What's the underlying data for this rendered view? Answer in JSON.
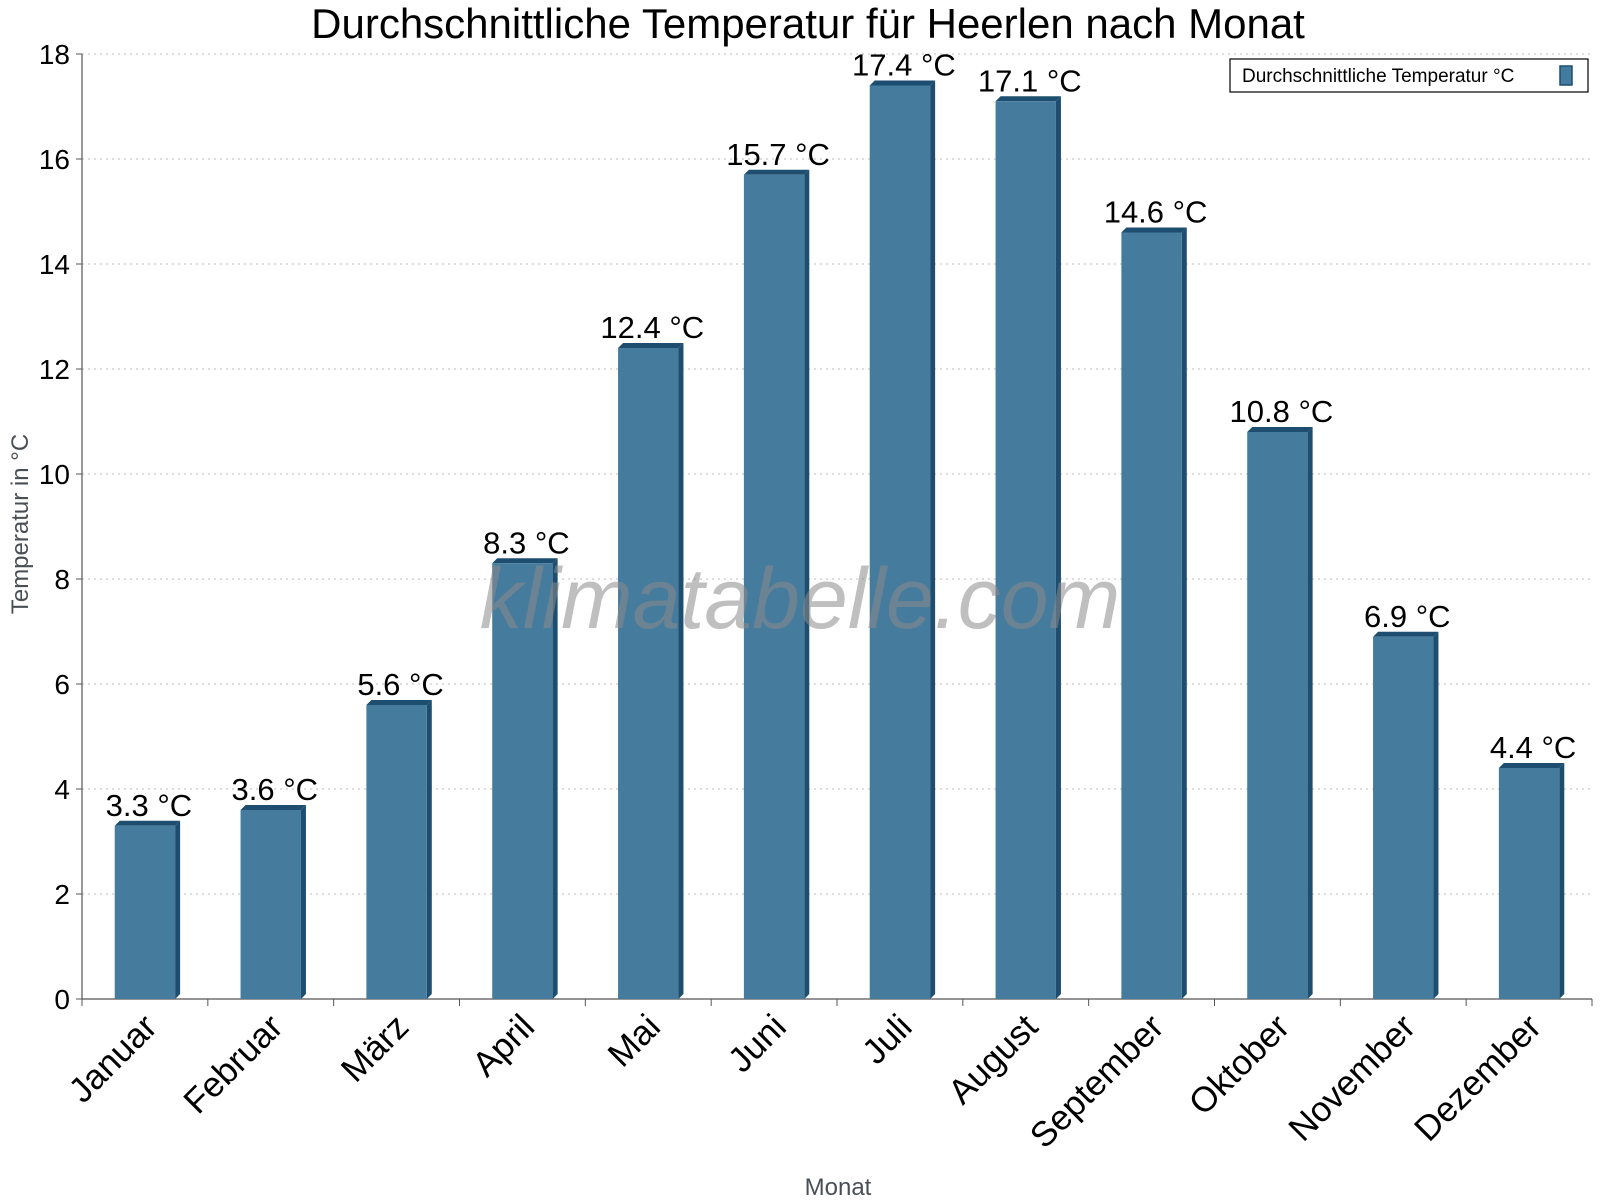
{
  "chart_data": {
    "type": "bar",
    "title": "Durchschnittliche Temperatur für Heerlen nach Monat",
    "xlabel": "Monat",
    "ylabel": "Temperatur in °C",
    "categories": [
      "Januar",
      "Februar",
      "März",
      "April",
      "Mai",
      "Juni",
      "Juli",
      "August",
      "September",
      "Oktober",
      "November",
      "Dezember"
    ],
    "series": [
      {
        "name": "Durchschnittliche Temperatur °C",
        "values": [
          3.3,
          3.6,
          5.6,
          8.3,
          12.4,
          15.7,
          17.4,
          17.1,
          14.6,
          10.8,
          6.9,
          4.4
        ],
        "labels": [
          "3.3 °C",
          "3.6 °C",
          "5.6 °C",
          "8.3 °C",
          "12.4 °C",
          "15.7 °C",
          "17.4 °C",
          "17.1 °C",
          "14.6 °C",
          "10.8 °C",
          "6.9 °C",
          "4.4 °C"
        ],
        "color": "#457b9d",
        "edge_color": "#1d4e70"
      }
    ],
    "ylim": [
      0,
      18
    ],
    "yticks": [
      0,
      2,
      4,
      6,
      8,
      10,
      12,
      14,
      16,
      18
    ],
    "grid": true,
    "legend_position": "top-right",
    "watermark": "klimatabelle.com"
  }
}
